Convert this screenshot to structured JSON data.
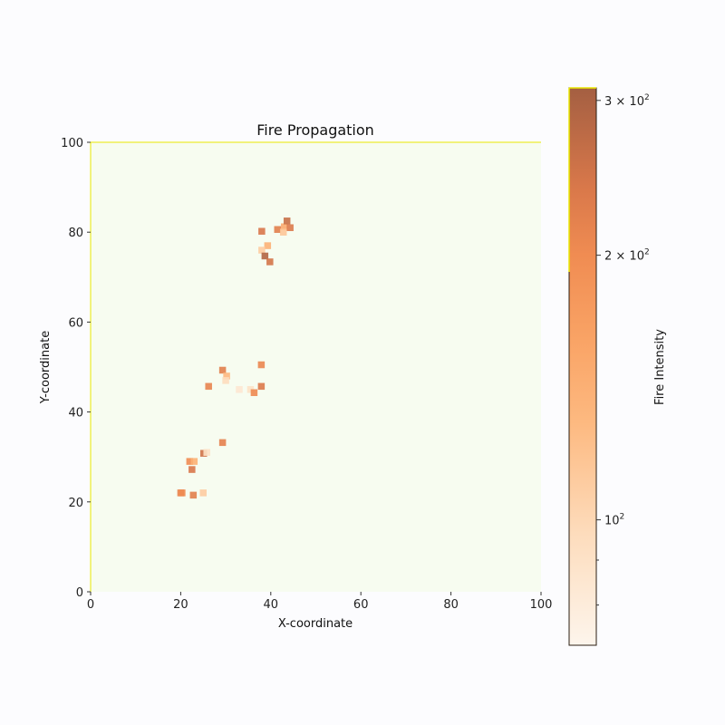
{
  "chart_data": {
    "type": "scatter",
    "title": "Fire Propagation",
    "xlabel": "X-coordinate",
    "ylabel": "Y-coordinate",
    "xlim": [
      0,
      100
    ],
    "ylim": [
      0,
      100
    ],
    "xticks": [
      "0",
      "20",
      "40",
      "60",
      "80",
      "100"
    ],
    "yticks": [
      "0",
      "20",
      "40",
      "60",
      "80",
      "100"
    ],
    "background_color": "#f7fcf0",
    "frame_color": "#e8e800",
    "grid": false,
    "marker": "square",
    "points": [
      {
        "x": 38.0,
        "y": 80.2,
        "v": 240
      },
      {
        "x": 41.5,
        "y": 80.6,
        "v": 225
      },
      {
        "x": 43.0,
        "y": 81.2,
        "v": 150
      },
      {
        "x": 43.6,
        "y": 82.5,
        "v": 260
      },
      {
        "x": 44.3,
        "y": 81.0,
        "v": 235
      },
      {
        "x": 42.8,
        "y": 80.0,
        "v": 115
      },
      {
        "x": 39.3,
        "y": 77.0,
        "v": 140
      },
      {
        "x": 38.0,
        "y": 76.0,
        "v": 110
      },
      {
        "x": 38.7,
        "y": 74.7,
        "v": 290
      },
      {
        "x": 39.8,
        "y": 73.4,
        "v": 245
      },
      {
        "x": 29.3,
        "y": 49.3,
        "v": 225
      },
      {
        "x": 30.2,
        "y": 48.0,
        "v": 130
      },
      {
        "x": 30.0,
        "y": 47.0,
        "v": 95
      },
      {
        "x": 26.2,
        "y": 45.7,
        "v": 215
      },
      {
        "x": 33.0,
        "y": 45.0,
        "v": 85
      },
      {
        "x": 35.5,
        "y": 45.0,
        "v": 90
      },
      {
        "x": 36.3,
        "y": 44.3,
        "v": 205
      },
      {
        "x": 37.9,
        "y": 50.5,
        "v": 210
      },
      {
        "x": 37.9,
        "y": 45.7,
        "v": 235
      },
      {
        "x": 29.3,
        "y": 33.2,
        "v": 220
      },
      {
        "x": 25.1,
        "y": 30.8,
        "v": 250
      },
      {
        "x": 25.8,
        "y": 31.0,
        "v": 90
      },
      {
        "x": 22.0,
        "y": 29.0,
        "v": 200
      },
      {
        "x": 23.0,
        "y": 29.0,
        "v": 140
      },
      {
        "x": 22.5,
        "y": 27.2,
        "v": 240
      },
      {
        "x": 20.0,
        "y": 22.0,
        "v": 215
      },
      {
        "x": 20.3,
        "y": 22.0,
        "v": 200
      },
      {
        "x": 22.8,
        "y": 21.5,
        "v": 225
      },
      {
        "x": 25.0,
        "y": 22.0,
        "v": 110
      }
    ],
    "colorbar": {
      "label": "Fire Intensity",
      "scale": "log",
      "min": 72,
      "max": 310,
      "colormap": "Oranges",
      "major_ticks": [
        {
          "value": 100,
          "base": "10",
          "exp": "2",
          "coef": ""
        },
        {
          "value": 200,
          "base": "10",
          "exp": "2",
          "coef": "2 × "
        },
        {
          "value": 300,
          "base": "10",
          "exp": "2",
          "coef": "3 × "
        }
      ],
      "minor_ticks": [
        80,
        90
      ]
    }
  }
}
